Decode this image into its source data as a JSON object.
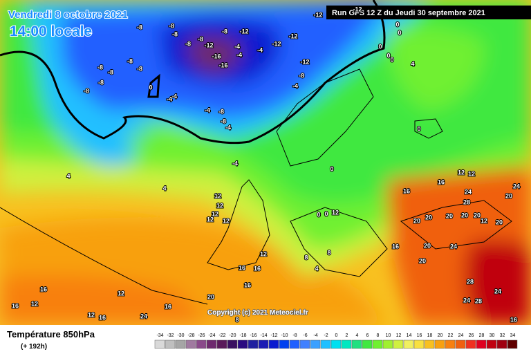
{
  "header": {
    "date": "Vendredi 8 octobre 2021",
    "time": "14:00 locale",
    "run": "Run GFS 12 Z du Jeudi 30 septembre 2021"
  },
  "copyright": "Copyright (c) 2021 Meteociel.fr",
  "footer": {
    "title": "Température 850hPa",
    "lead": "(+ 192h)"
  },
  "scale": {
    "ticks": [
      -34,
      -32,
      -30,
      -28,
      -26,
      -24,
      -22,
      -20,
      -18,
      -16,
      -14,
      -12,
      -10,
      -8,
      -6,
      -4,
      -2,
      0,
      2,
      4,
      6,
      8,
      10,
      12,
      14,
      16,
      18,
      20,
      22,
      24,
      26,
      28,
      30,
      32,
      34
    ],
    "colors": [
      "#d9d9d9",
      "#bfbfbf",
      "#a6a6a6",
      "#a07aa0",
      "#8a4a8a",
      "#6e2a6e",
      "#5a1a5a",
      "#3a1060",
      "#2a0a80",
      "#2020a0",
      "#1a1ab4",
      "#0a1ad0",
      "#0040f0",
      "#2060ff",
      "#4080ff",
      "#3aa0ff",
      "#20c0ff",
      "#00e0f0",
      "#00e8c0",
      "#20e080",
      "#40e840",
      "#70f030",
      "#a0f030",
      "#d0f040",
      "#f0f060",
      "#f8e040",
      "#f8c020",
      "#f8a010",
      "#f88010",
      "#f06010",
      "#f03020",
      "#e00020",
      "#c00010",
      "#a00010",
      "#600000"
    ]
  },
  "map_labels": [
    -8,
    -8,
    -8,
    -8,
    -8,
    -8,
    -12,
    -12,
    -12,
    -12,
    -12,
    -12,
    -12,
    -16,
    -16,
    -4,
    -4,
    -4,
    -8,
    -8,
    -8,
    -8,
    -8,
    -8,
    0,
    -4,
    -4,
    -8,
    -4,
    -4,
    -8,
    -8,
    -4,
    0,
    0,
    0,
    0,
    0,
    4,
    0,
    4,
    4,
    -4,
    12,
    12,
    12,
    12,
    12,
    12,
    12,
    16,
    16,
    24,
    28,
    20,
    24,
    20,
    20,
    20,
    20,
    20,
    20,
    12,
    16,
    20,
    20,
    24,
    28,
    24,
    24,
    28,
    16,
    16,
    16,
    16,
    16,
    16,
    16,
    12,
    12,
    12,
    16,
    20,
    24,
    8,
    8,
    8,
    4,
    0,
    0,
    0,
    12,
    12
  ]
}
